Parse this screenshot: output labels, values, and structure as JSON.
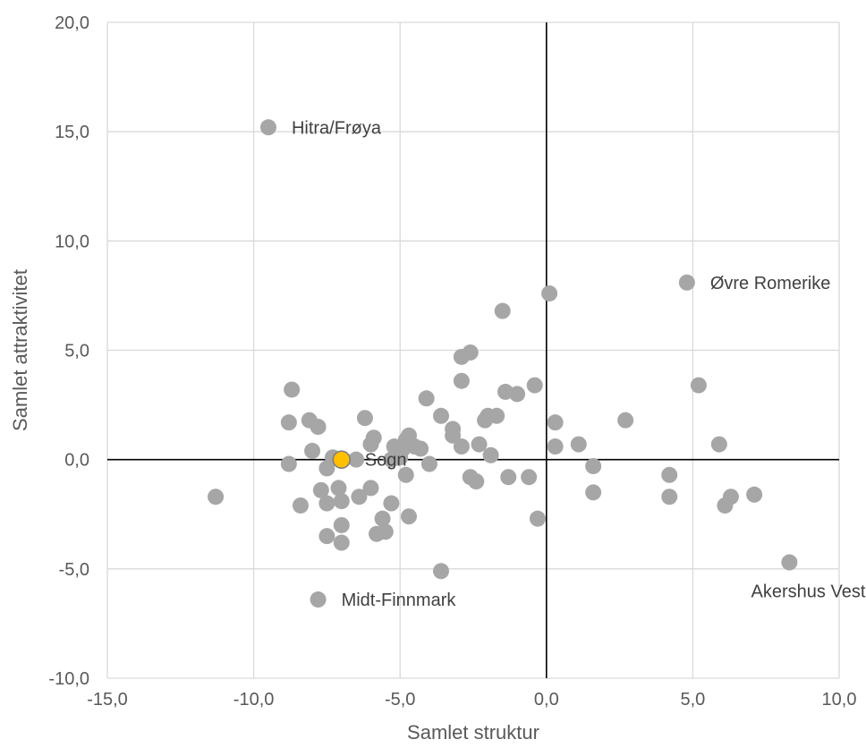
{
  "chart_data": {
    "type": "scatter",
    "xlabel": "Samlet struktur",
    "ylabel": "Samlet attraktivitet",
    "xlim": [
      -15,
      10
    ],
    "ylim": [
      -10,
      20
    ],
    "x_ticks": [
      -15,
      -10,
      -5,
      0,
      5,
      10
    ],
    "y_ticks": [
      -10,
      -5,
      0,
      5,
      10,
      15,
      20
    ],
    "x_tick_labels": [
      "-15,0",
      "-10,0",
      "-5,0",
      "0,0",
      "5,0",
      "10,0"
    ],
    "y_tick_labels": [
      "-10,0",
      "-5,0",
      "0,0",
      "5,0",
      "10,0",
      "15,0",
      "20,0"
    ],
    "grid": true,
    "colors": {
      "points": "#a6a6a6",
      "highlight": "#ffc000",
      "highlight_edge": "#7f7f7f",
      "grid": "#d9d9d9",
      "axis_lines": "#000000"
    },
    "labeled_points": [
      {
        "label": "Hitra/Frøya",
        "x": -9.5,
        "y": 15.2,
        "label_pos": "right",
        "highlight": false
      },
      {
        "label": "Øvre Romerike",
        "x": 4.8,
        "y": 8.1,
        "label_pos": "right",
        "highlight": false
      },
      {
        "label": "Sogn",
        "x": -7.0,
        "y": 0.0,
        "label_pos": "right",
        "highlight": true
      },
      {
        "label": "Midt-Finnmark",
        "x": -7.8,
        "y": -6.4,
        "label_pos": "right",
        "highlight": false
      },
      {
        "label": "Akershus Vest",
        "x": 8.3,
        "y": -4.7,
        "label_pos": "below-left",
        "highlight": false
      }
    ],
    "points": [
      [
        -11.3,
        -1.7
      ],
      [
        -8.8,
        1.7
      ],
      [
        -8.7,
        3.2
      ],
      [
        -8.8,
        -0.2
      ],
      [
        -8.4,
        -2.1
      ],
      [
        -8.1,
        1.8
      ],
      [
        -8.0,
        0.4
      ],
      [
        -7.8,
        1.5
      ],
      [
        -7.7,
        -1.4
      ],
      [
        -7.5,
        -0.4
      ],
      [
        -7.5,
        -2.0
      ],
      [
        -7.5,
        -3.5
      ],
      [
        -7.3,
        0.1
      ],
      [
        -7.1,
        -1.3
      ],
      [
        -7.0,
        -1.9
      ],
      [
        -7.0,
        -3.0
      ],
      [
        -7.0,
        -3.8
      ],
      [
        -6.5,
        0.0
      ],
      [
        -6.4,
        -1.7
      ],
      [
        -6.2,
        1.9
      ],
      [
        -6.0,
        0.7
      ],
      [
        -6.0,
        -1.3
      ],
      [
        -5.9,
        1.0
      ],
      [
        -5.8,
        -3.4
      ],
      [
        -5.6,
        -2.7
      ],
      [
        -5.5,
        -3.3
      ],
      [
        -5.3,
        0.0
      ],
      [
        -5.3,
        -2.0
      ],
      [
        -5.2,
        0.6
      ],
      [
        -5.0,
        0.1
      ],
      [
        -4.9,
        0.5
      ],
      [
        -4.8,
        0.9
      ],
      [
        -4.8,
        -0.7
      ],
      [
        -4.7,
        1.1
      ],
      [
        -4.7,
        -2.6
      ],
      [
        -4.5,
        0.6
      ],
      [
        -4.3,
        0.5
      ],
      [
        -4.1,
        2.8
      ],
      [
        -4.0,
        -0.2
      ],
      [
        -3.6,
        2.0
      ],
      [
        -3.6,
        -5.1
      ],
      [
        -3.2,
        1.4
      ],
      [
        -3.2,
        1.1
      ],
      [
        -2.9,
        4.7
      ],
      [
        -2.9,
        3.6
      ],
      [
        -2.9,
        0.6
      ],
      [
        -2.6,
        4.9
      ],
      [
        -2.6,
        -0.8
      ],
      [
        -2.4,
        -1.0
      ],
      [
        -2.3,
        0.7
      ],
      [
        -2.1,
        1.8
      ],
      [
        -2.0,
        2.0
      ],
      [
        -1.9,
        0.2
      ],
      [
        -1.7,
        2.0
      ],
      [
        -1.5,
        6.8
      ],
      [
        -1.4,
        3.1
      ],
      [
        -1.3,
        -0.8
      ],
      [
        -1.0,
        3.0
      ],
      [
        -0.6,
        -0.8
      ],
      [
        -0.4,
        3.4
      ],
      [
        -0.3,
        -2.7
      ],
      [
        0.1,
        7.6
      ],
      [
        0.3,
        1.7
      ],
      [
        0.3,
        0.6
      ],
      [
        1.1,
        0.7
      ],
      [
        1.6,
        -0.3
      ],
      [
        1.6,
        -1.5
      ],
      [
        2.7,
        1.8
      ],
      [
        4.2,
        -0.7
      ],
      [
        4.2,
        -1.7
      ],
      [
        5.2,
        3.4
      ],
      [
        5.9,
        0.7
      ],
      [
        6.1,
        -2.1
      ],
      [
        6.3,
        -1.7
      ],
      [
        7.1,
        -1.6
      ]
    ]
  }
}
